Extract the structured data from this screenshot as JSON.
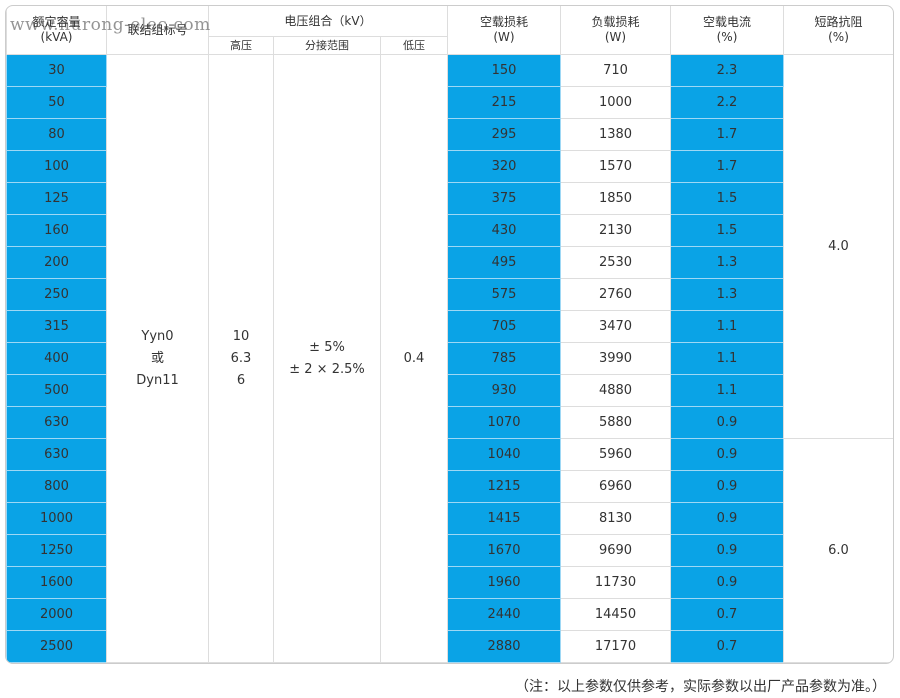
{
  "header": {
    "capacity": [
      "额定容量",
      "(kVA)"
    ],
    "connection": "联结组标号",
    "voltage": "电压组合（kV）",
    "high": "高压",
    "tap": "分接范围",
    "low": "低压",
    "no_load_loss": [
      "空载损耗",
      "(W)"
    ],
    "load_loss": [
      "负载损耗",
      "(W)"
    ],
    "no_load_current": [
      "空载电流",
      "(%)"
    ],
    "impedance": [
      "短路抗阻",
      "(%)"
    ]
  },
  "watermark": "www.hurong-elec.com",
  "connection_values": [
    "Yyn0",
    "或",
    "Dyn11"
  ],
  "high_values": [
    "10",
    "6.3",
    "6"
  ],
  "tap_values": [
    "± 5%",
    "± 2 × 2.5%"
  ],
  "low_value": "0.4",
  "groups": [
    {
      "impedance": "4.0",
      "rows": [
        [
          "30",
          "150",
          "710",
          "2.3"
        ],
        [
          "50",
          "215",
          "1000",
          "2.2"
        ],
        [
          "80",
          "295",
          "1380",
          "1.7"
        ],
        [
          "100",
          "320",
          "1570",
          "1.7"
        ],
        [
          "125",
          "375",
          "1850",
          "1.5"
        ],
        [
          "160",
          "430",
          "2130",
          "1.5"
        ],
        [
          "200",
          "495",
          "2530",
          "1.3"
        ],
        [
          "250",
          "575",
          "2760",
          "1.3"
        ],
        [
          "315",
          "705",
          "3470",
          "1.1"
        ],
        [
          "400",
          "785",
          "3990",
          "1.1"
        ],
        [
          "500",
          "930",
          "4880",
          "1.1"
        ],
        [
          "630",
          "1070",
          "5880",
          "0.9"
        ]
      ]
    },
    {
      "impedance": "6.0",
      "rows": [
        [
          "630",
          "1040",
          "5960",
          "0.9"
        ],
        [
          "800",
          "1215",
          "6960",
          "0.9"
        ],
        [
          "1000",
          "1415",
          "8130",
          "0.9"
        ],
        [
          "1250",
          "1670",
          "9690",
          "0.9"
        ],
        [
          "1600",
          "1960",
          "11730",
          "0.9"
        ],
        [
          "2000",
          "2440",
          "14450",
          "0.7"
        ],
        [
          "2500",
          "2880",
          "17170",
          "0.7"
        ]
      ]
    }
  ],
  "note": "（注：以上参数仅供参考，实际参数以出厂产品参数为准。）"
}
